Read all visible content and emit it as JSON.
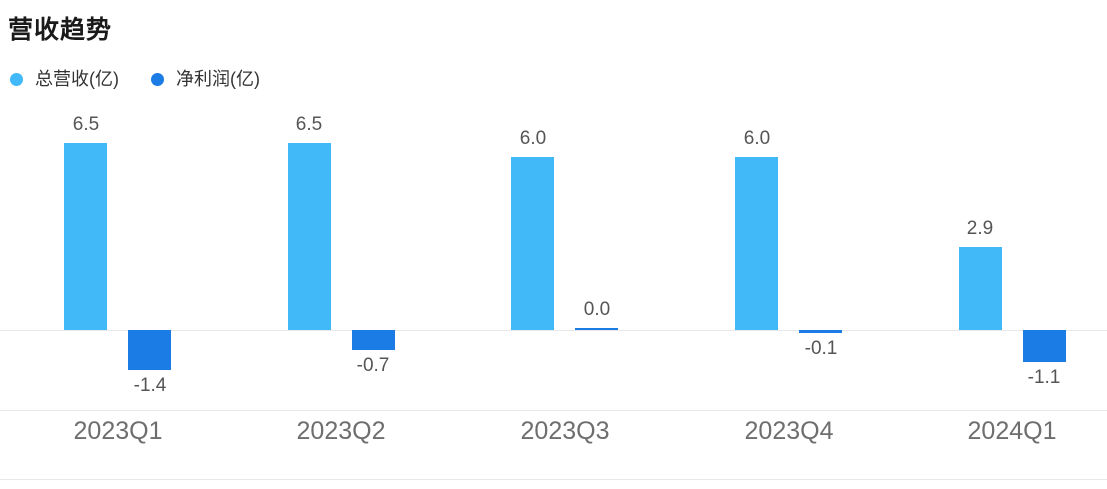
{
  "title": "营收趋势",
  "legend": {
    "items": [
      {
        "name": "总营收(亿)",
        "color": "#41B9F8"
      },
      {
        "name": "净利润(亿)",
        "color": "#1B7CE6"
      }
    ]
  },
  "colors": {
    "total_revenue": "#41B9F8",
    "net_profit": "#1B7CE6",
    "title_text": "#1a1a1a",
    "legend_text": "#333333",
    "value_label_text": "#555555",
    "axis_label_text": "#6e6e6e",
    "grid_line": "#e8e8e8",
    "background": "#ffffff"
  },
  "chart_data": {
    "type": "bar",
    "title": "营收趋势",
    "categories": [
      "2023Q1",
      "2023Q2",
      "2023Q3",
      "2023Q4",
      "2024Q1"
    ],
    "series": [
      {
        "name": "总营收(亿)",
        "color": "#41B9F8",
        "values": [
          6.5,
          6.5,
          6.0,
          6.0,
          2.9
        ],
        "labels": [
          "6.5",
          "6.5",
          "6.0",
          "6.0",
          "2.9"
        ]
      },
      {
        "name": "净利润(亿)",
        "color": "#1B7CE6",
        "values": [
          -1.4,
          -0.7,
          0.0,
          -0.1,
          -1.1
        ],
        "labels": [
          "-1.4",
          "-0.7",
          "0.0",
          "-0.1",
          "-1.1"
        ]
      }
    ],
    "xlabel": "",
    "ylabel": "",
    "ylim": [
      -2.8,
      7.0
    ],
    "grid": false,
    "y_axis_ticks_visible": false,
    "legend_position": "top-left",
    "value_labels": true
  }
}
